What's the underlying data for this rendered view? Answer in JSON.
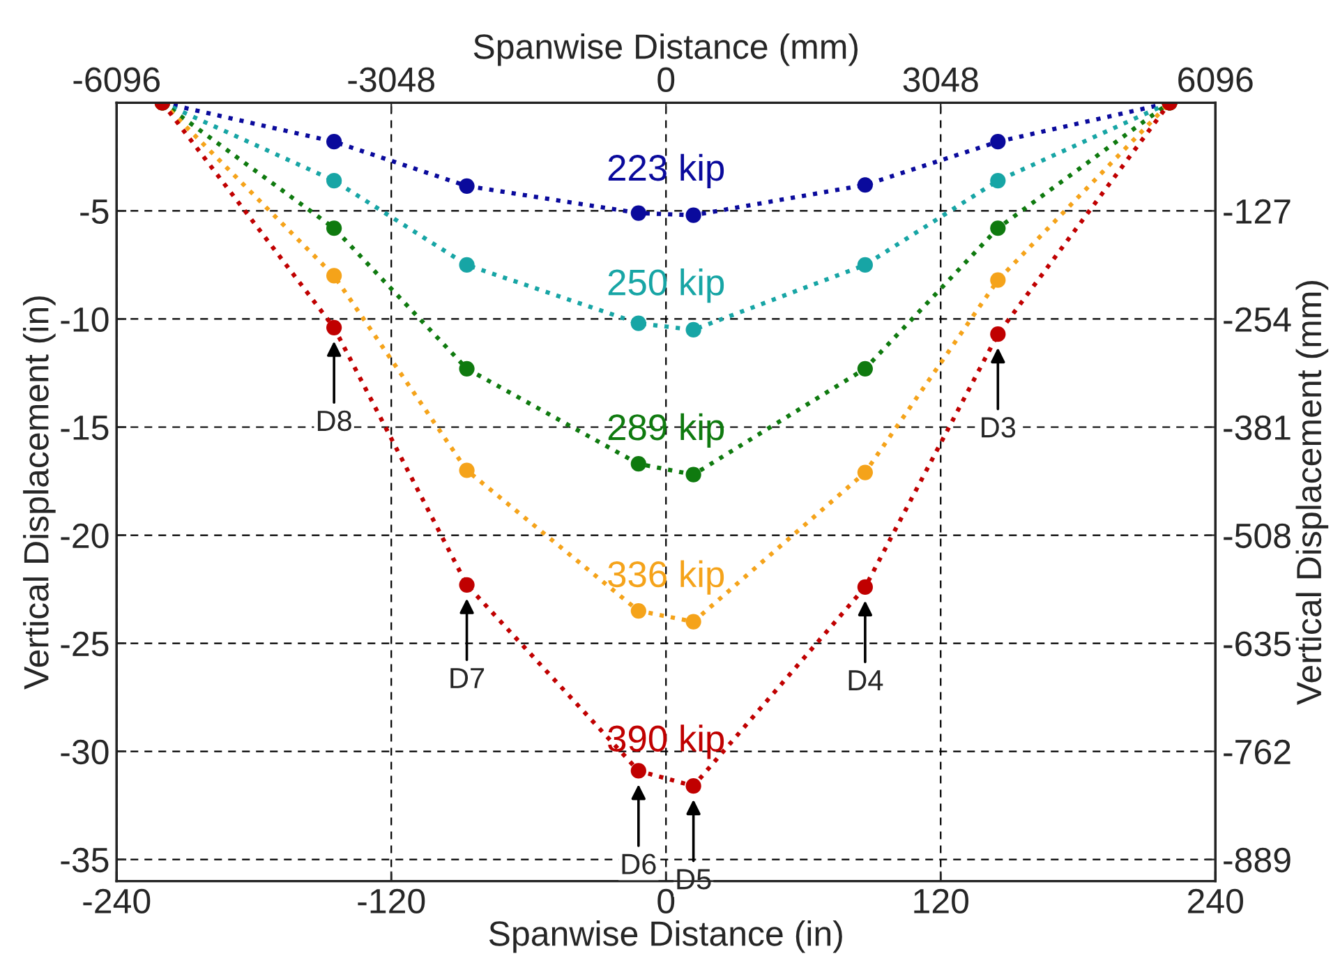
{
  "chart_data": {
    "type": "line",
    "xlabel": "Spanwise Distance (in)",
    "x2label": "Spanwise Distance (mm)",
    "ylabel": "Vertical Displacement (in)",
    "y2label": "Vertical Displacement (mm)",
    "x": [
      -220,
      -145,
      -87,
      -12,
      12,
      87,
      145,
      220
    ],
    "xlim": [
      -240,
      240
    ],
    "xticks": [
      -240,
      -120,
      0,
      120,
      240
    ],
    "x2lim": [
      -6096,
      6096
    ],
    "x2ticks": [
      -6096,
      -3048,
      0,
      3048,
      6096
    ],
    "ylim": [
      -36,
      0
    ],
    "yticks": [
      -5,
      -10,
      -15,
      -20,
      -25,
      -30,
      -35
    ],
    "y2lim": [
      -914.4,
      0
    ],
    "y2ticks": [
      -127,
      -254,
      -381,
      -508,
      -635,
      -762,
      -889
    ],
    "series": [
      {
        "name": "223 kip",
        "color": "#0a0a9c",
        "values": [
          0,
          -1.8,
          -3.85,
          -5.1,
          -5.2,
          -3.8,
          -1.8,
          0
        ]
      },
      {
        "name": "250 kip",
        "color": "#17a5a5",
        "values": [
          0,
          -3.6,
          -7.5,
          -10.2,
          -10.5,
          -7.5,
          -3.6,
          0
        ]
      },
      {
        "name": "289 kip",
        "color": "#0f7a0f",
        "values": [
          0,
          -5.8,
          -12.3,
          -16.7,
          -17.2,
          -12.3,
          -5.8,
          0
        ]
      },
      {
        "name": "336 kip",
        "color": "#f5a31a",
        "values": [
          0,
          -8.0,
          -17.0,
          -23.5,
          -24.0,
          -17.1,
          -8.2,
          0
        ]
      },
      {
        "name": "390 kip",
        "color": "#c00000",
        "values": [
          0,
          -10.4,
          -22.3,
          -30.9,
          -31.6,
          -22.4,
          -10.7,
          0
        ]
      }
    ],
    "marker": "circle",
    "line_style": "dotted",
    "grid": true,
    "legend": false,
    "annotations": [
      {
        "text": "D8",
        "x": -145,
        "y": -10.4
      },
      {
        "text": "D7",
        "x": -87,
        "y": -22.3
      },
      {
        "text": "D6",
        "x": -12,
        "y": -30.9
      },
      {
        "text": "D5",
        "x": 12,
        "y": -31.6
      },
      {
        "text": "D4",
        "x": 87,
        "y": -22.4
      },
      {
        "text": "D3",
        "x": 145,
        "y": -10.7
      }
    ]
  }
}
